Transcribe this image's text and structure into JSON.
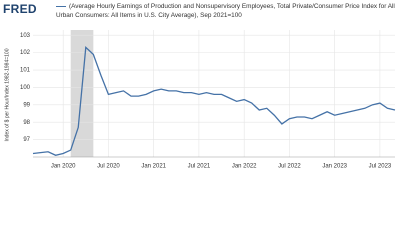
{
  "chart_data": {
    "type": "line",
    "logo": "FRED",
    "y_label": "Index of $ per Hour/Index 1982-1984=100",
    "x": [
      "2019-09",
      "2019-10",
      "2019-11",
      "2019-12",
      "2020-01",
      "2020-02",
      "2020-03",
      "2020-04",
      "2020-05",
      "2020-06",
      "2020-07",
      "2020-08",
      "2020-09",
      "2020-10",
      "2020-11",
      "2020-12",
      "2021-01",
      "2021-02",
      "2021-03",
      "2021-04",
      "2021-05",
      "2021-06",
      "2021-07",
      "2021-08",
      "2021-09",
      "2021-10",
      "2021-11",
      "2021-12",
      "2022-01",
      "2022-02",
      "2022-03",
      "2022-04",
      "2022-05",
      "2022-06",
      "2022-07",
      "2022-08",
      "2022-09",
      "2022-10",
      "2022-11",
      "2022-12",
      "2023-01",
      "2023-02",
      "2023-03",
      "2023-04",
      "2023-05",
      "2023-06",
      "2023-07",
      "2023-08",
      "2023-09"
    ],
    "series": [
      {
        "name": "(Average Hourly Earnings of Production and Nonsupervisory Employees, Total Private/Consumer Price Index for All Urban Consumers: All Items in U.S. City Average), Sep 2021=100",
        "color": "#4572a7",
        "values": [
          96.2,
          96.25,
          96.3,
          96.1,
          96.2,
          96.4,
          97.7,
          102.3,
          101.9,
          100.7,
          99.6,
          99.7,
          99.8,
          99.5,
          99.5,
          99.6,
          99.8,
          99.9,
          99.8,
          99.8,
          99.7,
          99.7,
          99.6,
          99.7,
          99.6,
          99.6,
          99.4,
          99.2,
          99.3,
          99.1,
          98.7,
          98.8,
          98.4,
          97.9,
          98.2,
          98.3,
          98.3,
          98.2,
          98.4,
          98.6,
          98.4,
          98.5,
          98.6,
          98.7,
          98.8,
          99.0,
          99.1,
          98.8,
          98.7
        ]
      }
    ],
    "recession": [
      "2020-02",
      "2020-04"
    ],
    "xlim": [
      "2019-09",
      "2023-09"
    ],
    "xticks": [
      {
        "value": "2020-01",
        "label": "Jan 2020"
      },
      {
        "value": "2020-07",
        "label": "Jul 2020"
      },
      {
        "value": "2021-01",
        "label": "Jan 2021"
      },
      {
        "value": "2021-07",
        "label": "Jul 2021"
      },
      {
        "value": "2022-01",
        "label": "Jan 2022"
      },
      {
        "value": "2022-07",
        "label": "Jul 2022"
      },
      {
        "value": "2023-01",
        "label": "Jan 2023"
      },
      {
        "value": "2023-07",
        "label": "Jul 2023"
      }
    ],
    "ylim": [
      96,
      103.3
    ],
    "yticks": [
      97,
      98,
      99,
      100,
      101,
      102,
      103
    ],
    "grid": true
  }
}
